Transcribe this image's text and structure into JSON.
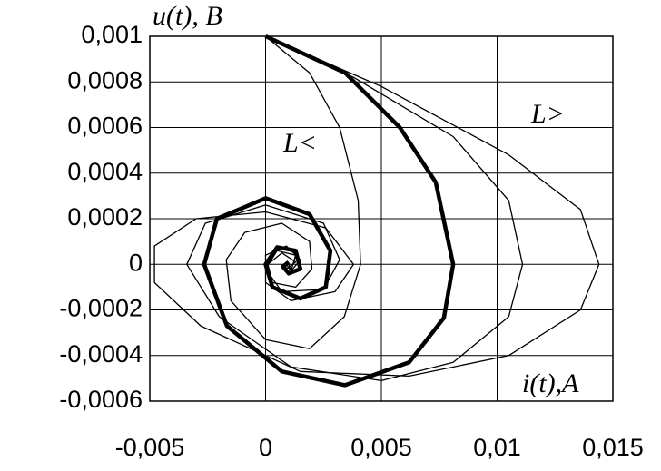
{
  "chart_data": {
    "type": "line",
    "y_label": "u(t), B",
    "x_label": "i(t),A",
    "annotations": [
      "L<",
      "L>"
    ],
    "xlim": [
      -0.005,
      0.015
    ],
    "xticks": [
      {
        "value": -0.005,
        "label": "-0,005"
      },
      0,
      {
        "value": 0.005,
        "label": "0,005"
      },
      {
        "value": 0.01,
        "label": "0,01"
      },
      {
        "value": 0.015,
        "label": "0,015"
      }
    ],
    "ylim": [
      -0.0006,
      0.001
    ],
    "yticks": [
      {
        "value": -0.0006,
        "label": "-0,0006"
      },
      {
        "value": -0.0004,
        "label": "-0,0004"
      },
      {
        "value": -0.0002,
        "label": "-0,0002"
      },
      0,
      {
        "value": 0.0002,
        "label": "0,0002"
      },
      {
        "value": 0.0004,
        "label": "0,0004"
      },
      {
        "value": 0.0006,
        "label": "0,0006"
      },
      {
        "value": 0.0008,
        "label": "0,0008"
      },
      {
        "value": 0.001,
        "label": "0,001"
      }
    ],
    "grid": true,
    "series": [
      {
        "color": "#000000",
        "x": [
          0,
          0.00343,
          0.0058,
          0.00735,
          0.0081,
          0.0077,
          0.0062,
          0.00343,
          0.0007,
          -0.00167,
          -0.00265,
          -0.0021,
          0,
          0.0019,
          0.0028,
          0.0026,
          0.0015,
          0.0003,
          0,
          0.0005,
          0.0013,
          0.0015,
          0.001,
          0.00075,
          0.001
        ],
        "values": [
          0.001,
          0.00084,
          0.0006,
          0.00036,
          0,
          -0.000235,
          -0.00043,
          -0.00053,
          -0.00047,
          -0.00027,
          0,
          0.0002,
          0.00029,
          0.00022,
          6e-05,
          -0.0001,
          -0.00015,
          -0.0001,
          0,
          7.5e-05,
          6e-05,
          -2e-05,
          -4e-05,
          -1e-05,
          1e-05
        ]
      },
      {
        "color": "#000000",
        "x": [
          0,
          0.005,
          0.0105,
          0.0136,
          0.0144,
          0.0136,
          0.0105,
          0.0062,
          0.0015,
          -0.0028,
          -0.0048,
          -0.0048,
          -0.003,
          0,
          0.0026,
          0.0038,
          0.003,
          0.0011,
          0,
          0,
          0.0009,
          0.0015,
          0.0011,
          0.001
        ],
        "values": [
          0.001,
          0.00078,
          0.00048,
          0.00024,
          0,
          -0.0002,
          -0.0004,
          -0.00049,
          -0.00047,
          -0.00027,
          -8e-05,
          8e-05,
          0.0002,
          0.00023,
          0.00016,
          0,
          -0.00012,
          -0.00016,
          -8e-05,
          4e-05,
          8e-05,
          2e-05,
          -3e-05,
          0
        ]
      },
      {
        "color": "#000000",
        "x": [
          0,
          0.0038,
          0.0081,
          0.0105,
          0.0111,
          0.0105,
          0.0081,
          0.005,
          0.0011,
          -0.002,
          -0.0034,
          -0.0026,
          0,
          0.0025,
          0.0032,
          0.0025,
          0.0007,
          0,
          0.0005,
          0.0013,
          0.0011,
          0.0009
        ],
        "values": [
          0.001,
          0.00082,
          0.00056,
          0.00028,
          0,
          -0.00023,
          -0.00043,
          -0.00051,
          -0.00045,
          -0.00023,
          0,
          0.00018,
          0.00026,
          0.00018,
          2e-05,
          -0.00011,
          -0.00012,
          -2e-05,
          6e-05,
          4e-05,
          -3e-05,
          0
        ]
      },
      {
        "color": "#000000",
        "x": [
          0,
          0.0019,
          0.0032,
          0.004,
          0.0041,
          0.0034,
          0.0019,
          0,
          -0.0015,
          -0.0017,
          -0.0009,
          0.0007,
          0.0019,
          0.002,
          0.0013,
          0.0003,
          0.0001,
          0.0007,
          0.0013,
          0.0009,
          0.00085
        ],
        "values": [
          0.001,
          0.00084,
          0.0006,
          0.00028,
          0,
          -0.00023,
          -0.00037,
          -0.00033,
          -0.00016,
          2e-05,
          0.00014,
          0.00018,
          0.0001,
          -2e-05,
          -0.0001,
          -8e-05,
          0,
          5e-05,
          1e-05,
          -2e-05,
          0
        ]
      }
    ]
  }
}
